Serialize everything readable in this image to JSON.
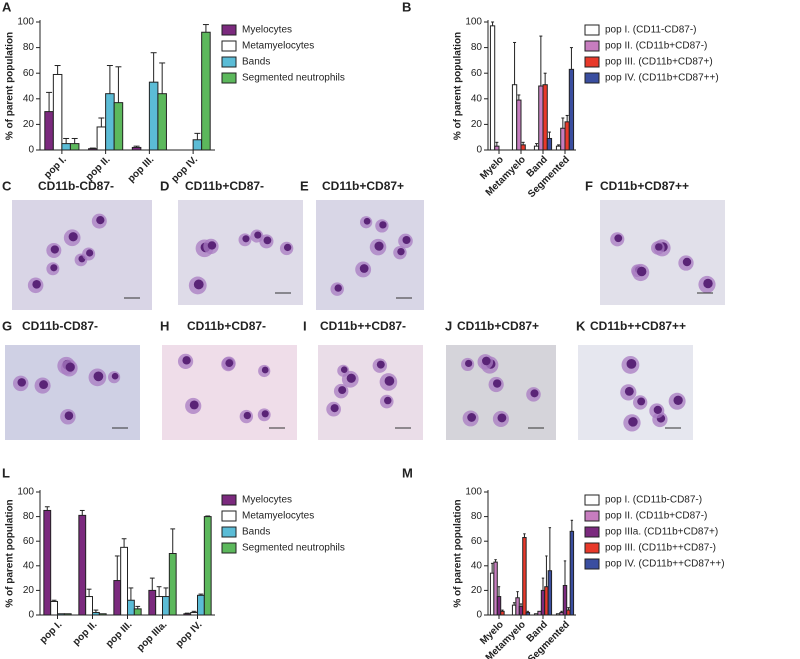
{
  "chart_data": [
    {
      "type": "bar",
      "panel": "A",
      "ylabel": "% of parent population",
      "categories": [
        "pop I.",
        "pop II.",
        "pop III.",
        "pop IV."
      ],
      "series": [
        {
          "name": "Myelocytes",
          "color": "#7b2a7e",
          "values": [
            30,
            1,
            2,
            0
          ],
          "errors": [
            15,
            0.5,
            1,
            null
          ]
        },
        {
          "name": "Metamyelocytes",
          "color": "#ffffff",
          "values": [
            59,
            18,
            0,
            0
          ],
          "errors": [
            7,
            7,
            null,
            null
          ]
        },
        {
          "name": "Bands",
          "color": "#5bbcd6",
          "values": [
            5,
            44,
            53,
            8
          ],
          "errors": [
            4,
            22,
            23,
            5
          ]
        },
        {
          "name": "Segmented neutrophils",
          "color": "#5cb85c",
          "values": [
            5,
            37,
            44,
            92
          ],
          "errors": [
            4,
            28,
            24,
            6
          ]
        }
      ],
      "ylim": [
        0,
        100
      ],
      "yticks": [
        0,
        20,
        40,
        60,
        80,
        100
      ]
    },
    {
      "type": "bar",
      "panel": "B",
      "ylabel": "% of parent population",
      "categories": [
        "Myelo",
        "Metamyelo",
        "Band",
        "Segmented"
      ],
      "series": [
        {
          "name": "pop I. (CD11-CD87-)",
          "color": "#ffffff",
          "values": [
            97,
            51,
            3,
            3
          ],
          "errors": [
            3,
            33,
            2,
            1
          ]
        },
        {
          "name": "pop II. (CD11b+CD87-)",
          "color": "#c77dbf",
          "values": [
            3,
            39,
            50,
            17
          ],
          "errors": [
            3,
            4,
            39,
            8
          ]
        },
        {
          "name": "pop III. (CD11b+CD87+)",
          "color": "#e8392a",
          "values": [
            0,
            4,
            51,
            22
          ],
          "errors": [
            null,
            2,
            9,
            5
          ]
        },
        {
          "name": "pop IV. (CD11b+CD87++)",
          "color": "#3a4ea0",
          "values": [
            0,
            0,
            9,
            63
          ],
          "errors": [
            null,
            null,
            5,
            17
          ]
        }
      ],
      "ylim": [
        0,
        100
      ],
      "yticks": [
        0,
        20,
        40,
        60,
        80,
        100
      ]
    },
    {
      "type": "bar",
      "panel": "L",
      "ylabel": "% of parent population",
      "categories": [
        "pop I.",
        "pop II.",
        "pop III.",
        "pop IIIa.",
        "pop IV."
      ],
      "series": [
        {
          "name": "Myelocytes",
          "color": "#7b2a7e",
          "values": [
            85,
            81,
            28,
            20,
            1
          ],
          "errors": [
            3,
            4,
            20,
            10,
            0.5
          ]
        },
        {
          "name": "Metamyelocytes",
          "color": "#ffffff",
          "values": [
            11,
            15,
            55,
            15,
            2
          ],
          "errors": [
            1,
            6,
            7,
            8,
            1
          ]
        },
        {
          "name": "Bands",
          "color": "#5bbcd6",
          "values": [
            1,
            2,
            12,
            15,
            16
          ],
          "errors": [
            null,
            2,
            10,
            7,
            1
          ]
        },
        {
          "name": "Segmented neutrophils",
          "color": "#5cb85c",
          "values": [
            1,
            1,
            5,
            50,
            80
          ],
          "errors": [
            null,
            null,
            2,
            20,
            0.5
          ]
        }
      ],
      "ylim": [
        0,
        100
      ],
      "yticks": [
        0,
        20,
        40,
        60,
        80,
        100
      ]
    },
    {
      "type": "bar",
      "panel": "M",
      "ylabel": "% of parent population",
      "categories": [
        "Myelo",
        "Metamyelo",
        "Band",
        "Segmented"
      ],
      "series": [
        {
          "name": "pop I. (CD11b-CD87-)",
          "color": "#ffffff",
          "values": [
            34,
            8,
            1,
            1
          ],
          "errors": [
            8,
            2,
            null,
            null
          ]
        },
        {
          "name": "pop II. (CD11b+CD87-)",
          "color": "#c77dbf",
          "values": [
            43,
            14,
            3,
            2
          ],
          "errors": [
            2,
            5,
            null,
            1
          ]
        },
        {
          "name": "pop IIIa. (CD11b+CD87+)",
          "color": "#7b2a7e",
          "values": [
            15,
            7,
            20,
            24
          ],
          "errors": [
            8,
            2,
            10,
            20
          ]
        },
        {
          "name": "pop III. (CD11b++CD87-)",
          "color": "#e8392a",
          "values": [
            3,
            63,
            23,
            4
          ],
          "errors": [
            1,
            3,
            25,
            2
          ]
        },
        {
          "name": "pop IV. (CD11b++CD87++)",
          "color": "#3a4ea0",
          "values": [
            0,
            2,
            36,
            68
          ],
          "errors": [
            null,
            1,
            35,
            9
          ]
        }
      ],
      "ylim": [
        0,
        100
      ],
      "yticks": [
        0,
        20,
        40,
        60,
        80,
        100
      ]
    }
  ],
  "micrographs": [
    {
      "label": "C",
      "title": "CD11b-CD87-"
    },
    {
      "label": "D",
      "title": "CD11b+CD87-"
    },
    {
      "label": "E",
      "title": "CD11b+CD87+"
    },
    {
      "label": "F",
      "title": "CD11b+CD87++"
    },
    {
      "label": "G",
      "title": "CD11b-CD87-"
    },
    {
      "label": "H",
      "title": "CD11b+CD87-"
    },
    {
      "label": "I",
      "title": "CD11b++CD87-"
    },
    {
      "label": "J",
      "title": "CD11b+CD87+"
    },
    {
      "label": "K",
      "title": "CD11b++CD87++"
    }
  ]
}
